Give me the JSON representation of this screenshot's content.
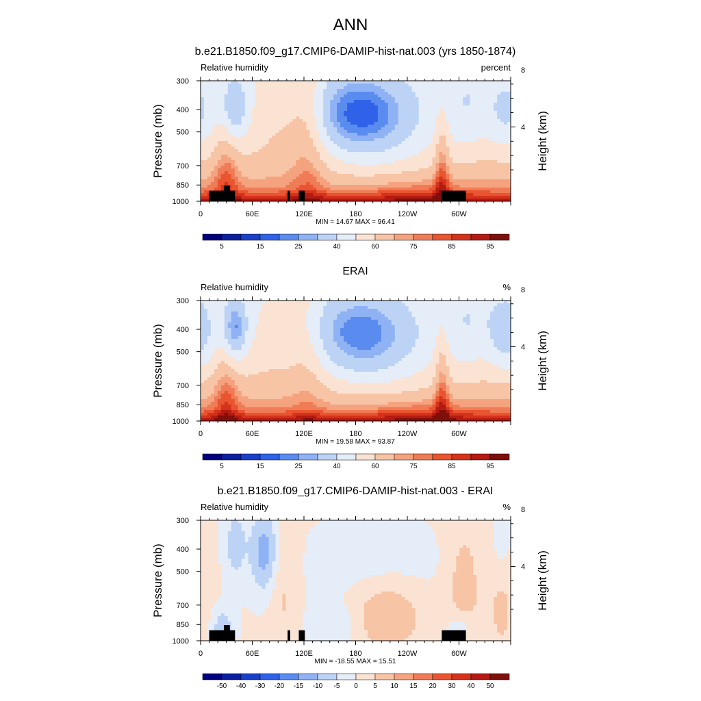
{
  "figure": {
    "title": "ANN"
  },
  "colors": {
    "abs_scale": [
      "#00007f",
      "#0a1f9e",
      "#1a40c8",
      "#2f62e8",
      "#5a8cf0",
      "#8fb2f5",
      "#bcd3f6",
      "#e4edf8",
      "#fbe3d4",
      "#f7c4a6",
      "#f5a27e",
      "#ef7c56",
      "#e85530",
      "#d5321c",
      "#b41a12",
      "#7f0f0a"
    ],
    "diff_scale": [
      "#00007f",
      "#0a1f9e",
      "#1a40c8",
      "#2f62e8",
      "#5a8cf0",
      "#8fb2f5",
      "#bcd3f6",
      "#e4edf8",
      "#fbe3d4",
      "#f7c4a6",
      "#f5a27e",
      "#ef7c56",
      "#e85530",
      "#d5321c",
      "#b41a12",
      "#7f0f0a"
    ],
    "land_mask": "#000000"
  },
  "chart_data": [
    {
      "type": "heatmap",
      "title": "b.e21.B1850.f09_g17.CMIP6-DAMIP-hist-nat.003 (yrs 1850-1874)",
      "variable": "Relative humidity",
      "units": "percent",
      "ylabel": "Pressure (mb)",
      "ylabel_right": "Height (km)",
      "x_ticks": [
        "0",
        "60E",
        "120E",
        "180",
        "120W",
        "60W"
      ],
      "x_tick_values": [
        0,
        60,
        120,
        180,
        240,
        300
      ],
      "xlim": [
        0,
        360
      ],
      "y_ticks": [
        "300",
        "400",
        "500",
        "700",
        "850",
        "1000"
      ],
      "y_tick_values": [
        300,
        400,
        500,
        700,
        850,
        1000
      ],
      "ylim": [
        1000,
        300
      ],
      "y_scale": "log",
      "right_ticks": [
        "8",
        "4"
      ],
      "right_tick_values": [
        8,
        4
      ],
      "stats": "MIN =  14.67  MAX =  96.41",
      "min": 14.67,
      "max": 96.41,
      "colorbar_labels": [
        "5",
        "15",
        "25",
        "40",
        "60",
        "75",
        "85",
        "95"
      ],
      "colorbar_levels": [
        5,
        10,
        15,
        20,
        25,
        30,
        40,
        50,
        60,
        70,
        75,
        80,
        85,
        90,
        95
      ],
      "land_mask": true
    },
    {
      "type": "heatmap",
      "title": "ERAI",
      "variable": "Relative humidity",
      "units": "%",
      "ylabel": "Pressure (mb)",
      "ylabel_right": "Height (km)",
      "x_ticks": [
        "0",
        "60E",
        "120E",
        "180",
        "120W",
        "60W"
      ],
      "x_tick_values": [
        0,
        60,
        120,
        180,
        240,
        300
      ],
      "xlim": [
        0,
        360
      ],
      "y_ticks": [
        "300",
        "400",
        "500",
        "700",
        "850",
        "1000"
      ],
      "y_tick_values": [
        300,
        400,
        500,
        700,
        850,
        1000
      ],
      "ylim": [
        1000,
        300
      ],
      "y_scale": "log",
      "right_ticks": [
        "8",
        "4"
      ],
      "right_tick_values": [
        8,
        4
      ],
      "stats": "MIN =  19.58  MAX =  93.87",
      "min": 19.58,
      "max": 93.87,
      "colorbar_labels": [
        "5",
        "15",
        "25",
        "40",
        "60",
        "75",
        "85",
        "95"
      ],
      "colorbar_levels": [
        5,
        10,
        15,
        20,
        25,
        30,
        40,
        50,
        60,
        70,
        75,
        80,
        85,
        90,
        95
      ],
      "land_mask": false
    },
    {
      "type": "heatmap",
      "title": "b.e21.B1850.f09_g17.CMIP6-DAMIP-hist-nat.003 - ERAI",
      "variable": "Relative humidity",
      "units": "%",
      "ylabel": "Pressure (mb)",
      "ylabel_right": "Height (km)",
      "x_ticks": [
        "0",
        "60E",
        "120E",
        "180",
        "120W",
        "60W"
      ],
      "x_tick_values": [
        0,
        60,
        120,
        180,
        240,
        300
      ],
      "xlim": [
        0,
        360
      ],
      "y_ticks": [
        "300",
        "400",
        "500",
        "700",
        "850",
        "1000"
      ],
      "y_tick_values": [
        300,
        400,
        500,
        700,
        850,
        1000
      ],
      "ylim": [
        1000,
        300
      ],
      "y_scale": "log",
      "right_ticks": [
        "8",
        "4"
      ],
      "right_tick_values": [
        8,
        4
      ],
      "stats": "MIN = -18.55  MAX =  15.51",
      "min": -18.55,
      "max": 15.51,
      "colorbar_labels": [
        "-50",
        "-40",
        "-30",
        "-20",
        "-15",
        "-10",
        "-5",
        "0",
        "5",
        "10",
        "15",
        "20",
        "30",
        "40",
        "50"
      ],
      "colorbar_levels": [
        -50,
        -40,
        -30,
        -20,
        -15,
        -10,
        -5,
        0,
        5,
        10,
        15,
        20,
        30,
        40,
        50
      ],
      "land_mask": true
    }
  ]
}
